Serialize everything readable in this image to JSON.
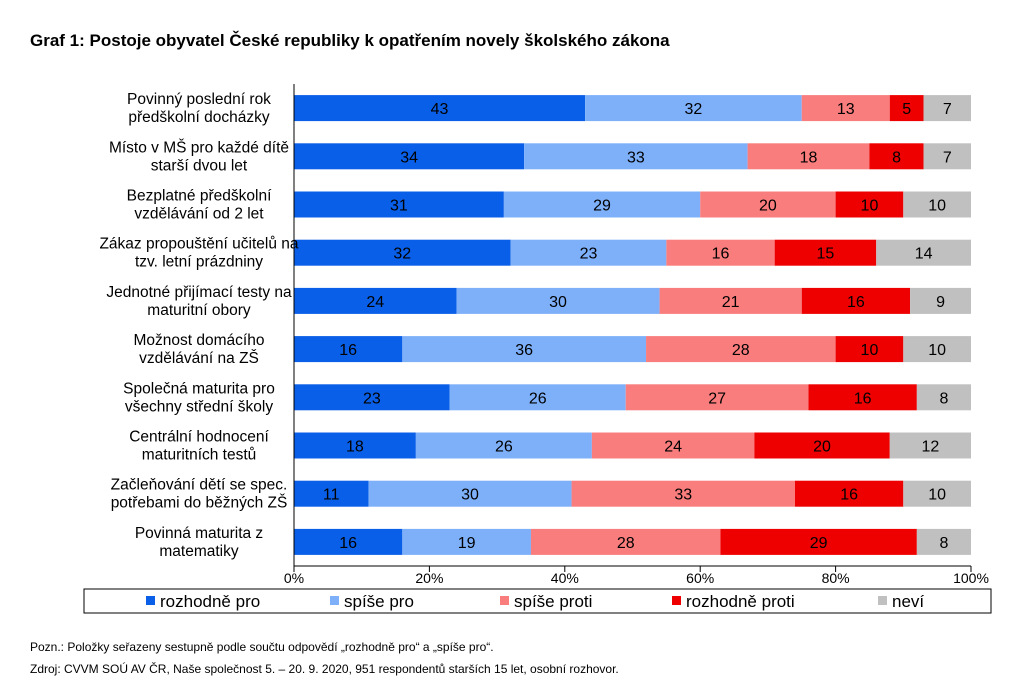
{
  "title": "Graf 1: Postoje obyvatel České republiky k opatřením novely školského zákona",
  "chart_data": {
    "type": "bar",
    "orientation": "horizontal",
    "stacked": true,
    "categories": [
      [
        "Povinný poslední rok",
        "předškolní docházky"
      ],
      [
        "Místo v MŠ pro každé dítě",
        "starší dvou let"
      ],
      [
        "Bezplatné předškolní",
        "vzdělávání od 2 let"
      ],
      [
        "Zákaz propouštění učitelů na",
        "tzv. letní prázdniny"
      ],
      [
        "Jednotné přijímací testy na",
        "maturitní obory"
      ],
      [
        "Možnost domácího",
        "vzdělávání na ZŠ"
      ],
      [
        "Společná maturita pro",
        "všechny střední školy"
      ],
      [
        "Centrální hodnocení",
        "maturitních testů"
      ],
      [
        "Začleňování dětí se spec.",
        "potřebami do běžných ZŠ"
      ],
      [
        "Povinná maturita z",
        "matematiky"
      ]
    ],
    "series": [
      {
        "name": "rozhodně pro",
        "color": "#0a5fe8",
        "values": [
          43,
          34,
          31,
          32,
          24,
          16,
          23,
          18,
          11,
          16
        ]
      },
      {
        "name": "spíše pro",
        "color": "#7eb0fa",
        "values": [
          32,
          33,
          29,
          23,
          30,
          36,
          26,
          26,
          30,
          19
        ]
      },
      {
        "name": "spíše proti",
        "color": "#f97d7d",
        "values": [
          13,
          18,
          20,
          16,
          21,
          28,
          27,
          24,
          33,
          28
        ]
      },
      {
        "name": "rozhodně proti",
        "color": "#ee0000",
        "values": [
          5,
          8,
          10,
          15,
          16,
          10,
          16,
          20,
          16,
          29
        ]
      },
      {
        "name": "neví",
        "color": "#c0c0c0",
        "values": [
          7,
          7,
          10,
          14,
          9,
          10,
          8,
          12,
          10,
          8
        ]
      }
    ],
    "xticks": [
      "0%",
      "20%",
      "40%",
      "60%",
      "80%",
      "100%"
    ],
    "xlim": [
      0,
      100
    ],
    "legend_position": "bottom",
    "grid": false
  },
  "note": "Pozn.: Položky seřazeny sestupně podle součtu odpovědí „rozhodně pro“ a „spíše pro“.",
  "source": "Zdroj: CVVM SOÚ AV ČR, Naše společnost 5. – 20. 9. 2020, 951 respondentů starších 15 let, osobní rozhovor."
}
